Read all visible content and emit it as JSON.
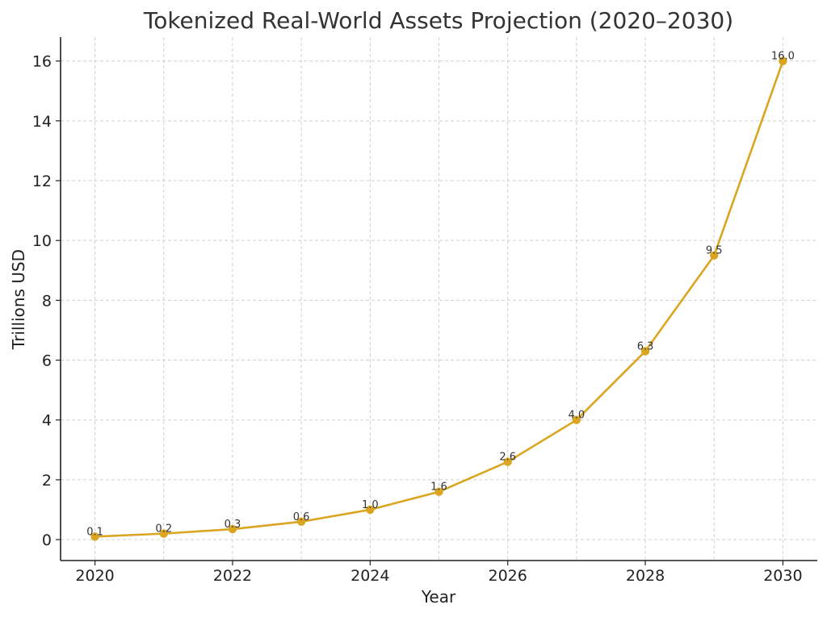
{
  "chart_data": {
    "type": "line",
    "title": "Tokenized Real-World Assets Projection (2020–2030)",
    "xlabel": "Year",
    "ylabel": "Trillions USD",
    "x": [
      2020,
      2021,
      2022,
      2023,
      2024,
      2025,
      2026,
      2027,
      2028,
      2029,
      2030
    ],
    "series": [
      {
        "values": [
          0.1,
          0.2,
          0.35,
          0.6,
          1.0,
          1.6,
          2.6,
          4.0,
          6.3,
          9.5,
          16.0
        ],
        "data_labels": [
          "0.1",
          "0.2",
          "0.3",
          "0.6",
          "1.0",
          "1.6",
          "2.6",
          "4.0",
          "6.3",
          "9.5",
          "16.0"
        ],
        "color": "#DAA520"
      }
    ],
    "xlim": [
      2019.5,
      2030.5
    ],
    "ylim": [
      -0.7,
      16.8
    ],
    "xticks": [
      2020,
      2022,
      2024,
      2026,
      2028,
      2030
    ],
    "yticks": [
      0,
      2,
      4,
      6,
      8,
      10,
      12,
      14,
      16
    ],
    "grid": true,
    "legend": "none"
  }
}
